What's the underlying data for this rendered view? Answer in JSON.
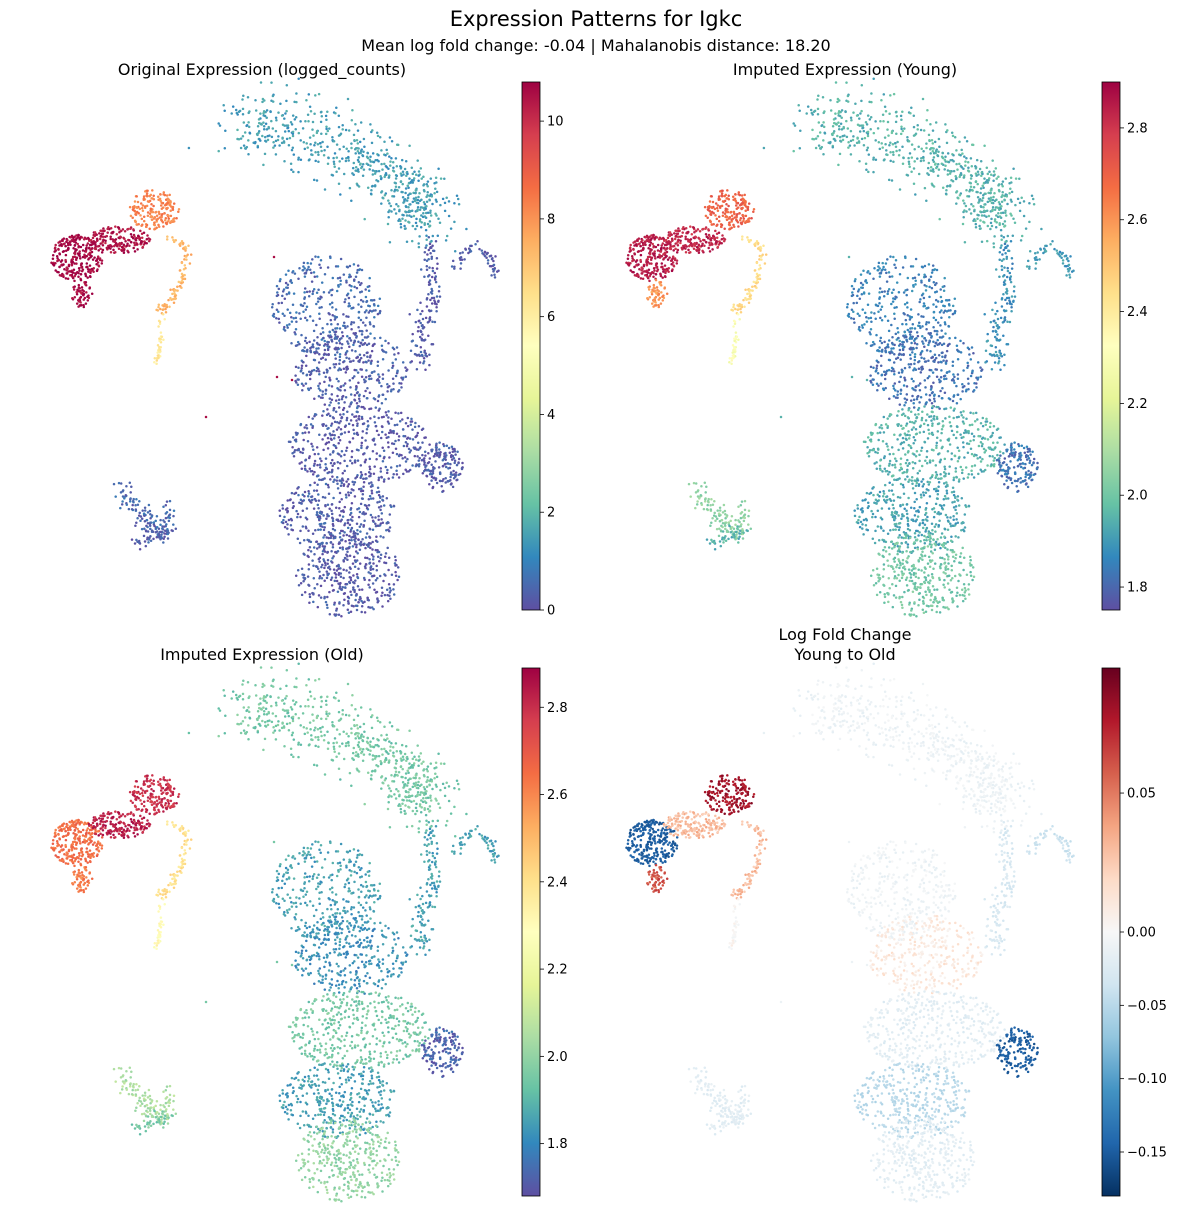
{
  "figure": {
    "title": "Expression Patterns for Igkc",
    "subtitle": "Mean log fold change: -0.04 | Mahalanobis distance: 18.20"
  },
  "chart_data": [
    {
      "type": "scatter",
      "id": "original",
      "title": "Original Expression (logged_counts)",
      "colormap": "Spectral_r",
      "vmin": 0,
      "vmax": 10.8,
      "colorbar_ticks": [
        0,
        2,
        4,
        6,
        8,
        10
      ],
      "colorbar_tick_labels": [
        "0",
        "2",
        "4",
        "6",
        "8",
        "10"
      ],
      "cluster_values": {
        "cA": 10.7,
        "cB": 10.5,
        "cC": 8.3,
        "cD": 7.4,
        "cE": 10.6,
        "cF": 6.2,
        "cG": 1.5,
        "cH": 0.5,
        "cI": 0.3,
        "cJ": 0.2,
        "cK": 0.3,
        "cL": 0.2,
        "cM": 0.2,
        "cN": 0.2,
        "cO": 0.2,
        "cP": 0.5,
        "cQ": 0.3
      }
    },
    {
      "type": "scatter",
      "id": "young",
      "title": "Imputed Expression (Young)",
      "colormap": "Spectral_r",
      "vmin": 1.75,
      "vmax": 2.9,
      "colorbar_ticks": [
        1.8,
        2.0,
        2.2,
        2.4,
        2.6,
        2.8
      ],
      "colorbar_tick_labels": [
        "1.8",
        "2.0",
        "2.2",
        "2.4",
        "2.6",
        "2.8"
      ],
      "cluster_values": {
        "cA": 2.85,
        "cB": 2.83,
        "cC": 2.7,
        "cD": 2.45,
        "cE": 2.6,
        "cF": 2.3,
        "cG": 1.95,
        "cH": 1.85,
        "cI": 1.82,
        "cJ": 1.95,
        "cK": 1.92,
        "cL": 2.0,
        "cM": 1.88,
        "cN": 1.82,
        "cO": 1.9,
        "cP": 2.05,
        "cQ": 1.95
      }
    },
    {
      "type": "scatter",
      "id": "old",
      "title": "Imputed Expression (Old)",
      "colormap": "Spectral_r",
      "vmin": 1.68,
      "vmax": 2.89,
      "colorbar_ticks": [
        1.8,
        2.0,
        2.2,
        2.4,
        2.6,
        2.8
      ],
      "colorbar_tick_labels": [
        "1.8",
        "2.0",
        "2.2",
        "2.4",
        "2.6",
        "2.8"
      ],
      "cluster_values": {
        "cA": 2.65,
        "cB": 2.83,
        "cC": 2.8,
        "cD": 2.4,
        "cE": 2.62,
        "cF": 2.3,
        "cG": 1.95,
        "cH": 1.85,
        "cI": 1.82,
        "cJ": 1.95,
        "cK": 1.85,
        "cL": 2.0,
        "cM": 1.85,
        "cN": 1.72,
        "cO": 1.85,
        "cP": 2.05,
        "cQ": 1.95
      }
    },
    {
      "type": "scatter",
      "id": "lfc",
      "title": "Log Fold Change\nYoung to Old",
      "colormap": "RdBu_r",
      "vmin": -0.18,
      "vmax": 0.095,
      "vcenter": 0,
      "colorbar_ticks": [
        -0.15,
        -0.1,
        -0.05,
        0.0,
        0.05
      ],
      "colorbar_tick_labels": [
        "−0.15",
        "−0.10",
        "−0.05",
        "0.00",
        "0.05"
      ],
      "cluster_values": {
        "cA": -0.15,
        "cB": 0.03,
        "cC": 0.08,
        "cD": 0.03,
        "cE": 0.06,
        "cF": 0.0,
        "cG": -0.01,
        "cH": -0.01,
        "cI": 0.01,
        "cJ": -0.02,
        "cK": -0.05,
        "cL": -0.02,
        "cM": -0.03,
        "cN": -0.15,
        "cO": -0.04,
        "cP": -0.02,
        "cQ": -0.02
      }
    }
  ]
}
